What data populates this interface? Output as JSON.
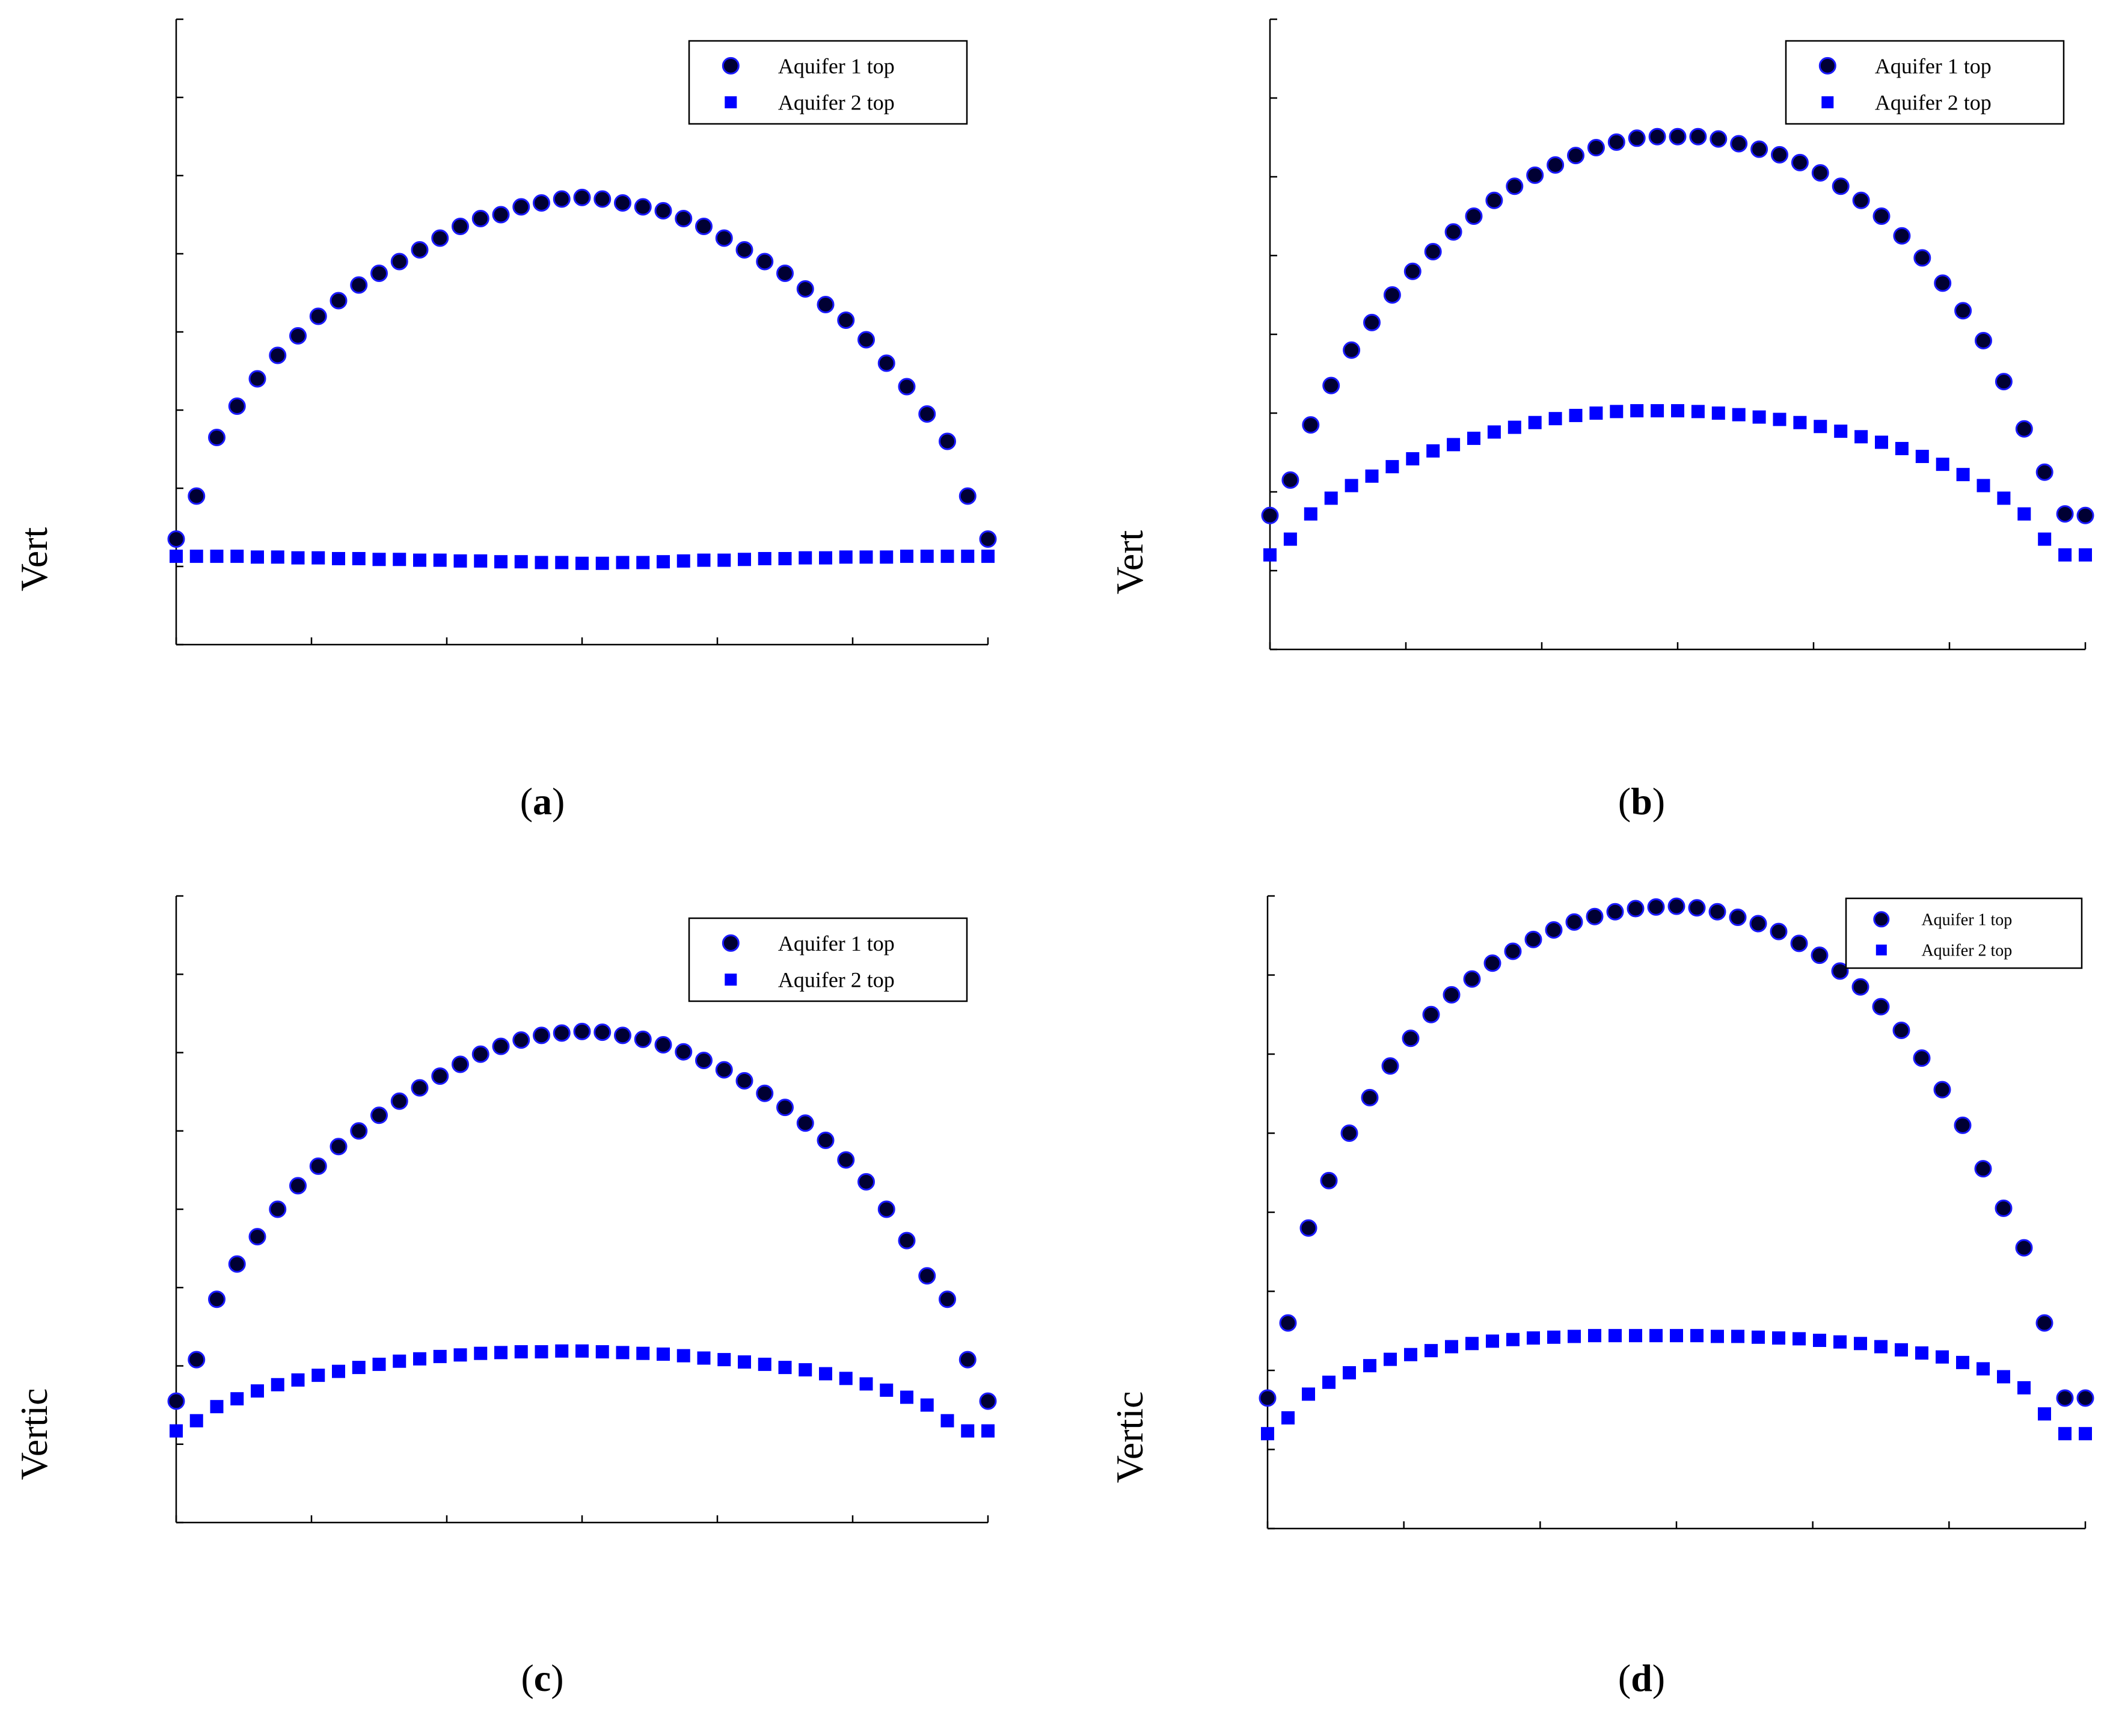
{
  "colors": {
    "aquifer1_fill": "#000033",
    "aquifer1_stroke": "#1a1aff",
    "aquifer2_fill": "#0000ff",
    "axis": "#000000"
  },
  "chart_data": [
    {
      "type": "scatter",
      "panel_label": "a",
      "ylabel": "Vert",
      "xlim": [
        0,
        6
      ],
      "ylim": [
        0,
        8
      ],
      "xticks": [
        0,
        1,
        2,
        3,
        4,
        5,
        6
      ],
      "yticks": [
        0,
        1,
        2,
        3,
        4,
        5,
        6,
        7,
        8
      ],
      "legend": "top-right",
      "series": [
        {
          "name": "Aquifer 1 top",
          "marker": "circle",
          "x": [
            0,
            0.15,
            0.3,
            0.45,
            0.6,
            0.75,
            0.9,
            1.05,
            1.2,
            1.35,
            1.5,
            1.65,
            1.8,
            1.95,
            2.1,
            2.25,
            2.4,
            2.55,
            2.7,
            2.85,
            3.0,
            3.15,
            3.3,
            3.45,
            3.6,
            3.75,
            3.9,
            4.05,
            4.2,
            4.35,
            4.5,
            4.65,
            4.8,
            4.95,
            5.1,
            5.25,
            5.4,
            5.55,
            5.7,
            5.85,
            6.0
          ],
          "values": [
            1.35,
            1.9,
            2.65,
            3.05,
            3.4,
            3.7,
            3.95,
            4.2,
            4.4,
            4.6,
            4.75,
            4.9,
            5.05,
            5.2,
            5.35,
            5.45,
            5.5,
            5.6,
            5.65,
            5.7,
            5.72,
            5.7,
            5.65,
            5.6,
            5.55,
            5.45,
            5.35,
            5.2,
            5.05,
            4.9,
            4.75,
            4.55,
            4.35,
            4.15,
            3.9,
            3.6,
            3.3,
            2.95,
            2.6,
            1.9,
            1.35
          ]
        },
        {
          "name": "Aquifer 2 top",
          "marker": "square",
          "x": [
            0,
            0.15,
            0.3,
            0.45,
            0.6,
            0.75,
            0.9,
            1.05,
            1.2,
            1.35,
            1.5,
            1.65,
            1.8,
            1.95,
            2.1,
            2.25,
            2.4,
            2.55,
            2.7,
            2.85,
            3.0,
            3.15,
            3.3,
            3.45,
            3.6,
            3.75,
            3.9,
            4.05,
            4.2,
            4.35,
            4.5,
            4.65,
            4.8,
            4.95,
            5.1,
            5.25,
            5.4,
            5.55,
            5.7,
            5.85,
            6.0
          ],
          "values": [
            1.13,
            1.13,
            1.13,
            1.13,
            1.12,
            1.12,
            1.11,
            1.11,
            1.1,
            1.1,
            1.09,
            1.09,
            1.08,
            1.08,
            1.07,
            1.07,
            1.06,
            1.06,
            1.05,
            1.05,
            1.04,
            1.04,
            1.05,
            1.05,
            1.06,
            1.07,
            1.08,
            1.08,
            1.09,
            1.1,
            1.1,
            1.11,
            1.11,
            1.12,
            1.12,
            1.12,
            1.13,
            1.13,
            1.13,
            1.13,
            1.13
          ]
        }
      ]
    },
    {
      "type": "scatter",
      "panel_label": "b",
      "ylabel": "Vert",
      "xlim": [
        0,
        6
      ],
      "ylim": [
        0,
        8
      ],
      "xticks": [
        0,
        1,
        2,
        3,
        4,
        5,
        6
      ],
      "yticks": [
        0,
        1,
        2,
        3,
        4,
        5,
        6,
        7,
        8
      ],
      "legend": "top-right",
      "series": [
        {
          "name": "Aquifer 1 top",
          "marker": "circle",
          "x": [
            0,
            0.15,
            0.3,
            0.45,
            0.6,
            0.75,
            0.9,
            1.05,
            1.2,
            1.35,
            1.5,
            1.65,
            1.8,
            1.95,
            2.1,
            2.25,
            2.4,
            2.55,
            2.7,
            2.85,
            3.0,
            3.15,
            3.3,
            3.45,
            3.6,
            3.75,
            3.9,
            4.05,
            4.2,
            4.35,
            4.5,
            4.65,
            4.8,
            4.95,
            5.1,
            5.25,
            5.4,
            5.55,
            5.7,
            5.85,
            6.0
          ],
          "values": [
            1.7,
            2.15,
            2.85,
            3.35,
            3.8,
            4.15,
            4.5,
            4.8,
            5.05,
            5.3,
            5.5,
            5.7,
            5.88,
            6.02,
            6.15,
            6.27,
            6.37,
            6.44,
            6.49,
            6.51,
            6.51,
            6.51,
            6.48,
            6.42,
            6.35,
            6.28,
            6.18,
            6.05,
            5.88,
            5.7,
            5.5,
            5.25,
            4.97,
            4.65,
            4.3,
            3.92,
            3.4,
            2.8,
            2.25,
            1.72,
            1.7
          ]
        },
        {
          "name": "Aquifer 2 top",
          "marker": "square",
          "x": [
            0,
            0.15,
            0.3,
            0.45,
            0.6,
            0.75,
            0.9,
            1.05,
            1.2,
            1.35,
            1.5,
            1.65,
            1.8,
            1.95,
            2.1,
            2.25,
            2.4,
            2.55,
            2.7,
            2.85,
            3.0,
            3.15,
            3.3,
            3.45,
            3.6,
            3.75,
            3.9,
            4.05,
            4.2,
            4.35,
            4.5,
            4.65,
            4.8,
            4.95,
            5.1,
            5.25,
            5.4,
            5.55,
            5.7,
            5.85,
            6.0
          ],
          "values": [
            1.2,
            1.4,
            1.72,
            1.92,
            2.08,
            2.2,
            2.32,
            2.42,
            2.52,
            2.6,
            2.68,
            2.76,
            2.82,
            2.88,
            2.93,
            2.97,
            3.0,
            3.02,
            3.03,
            3.03,
            3.03,
            3.02,
            3.0,
            2.98,
            2.95,
            2.92,
            2.88,
            2.83,
            2.77,
            2.7,
            2.63,
            2.55,
            2.45,
            2.35,
            2.22,
            2.08,
            1.92,
            1.72,
            1.4,
            1.2,
            1.2
          ]
        }
      ]
    },
    {
      "type": "scatter",
      "panel_label": "c",
      "ylabel": "Vertic",
      "xlim": [
        0,
        6
      ],
      "ylim": [
        0,
        8
      ],
      "xticks": [
        0,
        1,
        2,
        3,
        4,
        5,
        6
      ],
      "yticks": [
        0,
        1,
        2,
        3,
        4,
        5,
        6,
        7,
        8
      ],
      "legend": "top-right",
      "series": [
        {
          "name": "Aquifer 1 top",
          "marker": "circle",
          "x": [
            0,
            0.15,
            0.3,
            0.45,
            0.6,
            0.75,
            0.9,
            1.05,
            1.2,
            1.35,
            1.5,
            1.65,
            1.8,
            1.95,
            2.1,
            2.25,
            2.4,
            2.55,
            2.7,
            2.85,
            3.0,
            3.15,
            3.3,
            3.45,
            3.6,
            3.75,
            3.9,
            4.05,
            4.2,
            4.35,
            4.5,
            4.65,
            4.8,
            4.95,
            5.1,
            5.25,
            5.4,
            5.55,
            5.7,
            5.85,
            6.0
          ],
          "values": [
            1.55,
            2.08,
            2.85,
            3.3,
            3.65,
            4.0,
            4.3,
            4.55,
            4.8,
            5.0,
            5.2,
            5.38,
            5.55,
            5.7,
            5.85,
            5.98,
            6.08,
            6.16,
            6.22,
            6.25,
            6.27,
            6.26,
            6.22,
            6.17,
            6.1,
            6.01,
            5.9,
            5.78,
            5.64,
            5.48,
            5.3,
            5.1,
            4.88,
            4.63,
            4.35,
            4.0,
            3.6,
            3.15,
            2.85,
            2.08,
            1.55
          ]
        },
        {
          "name": "Aquifer 2 top",
          "marker": "square",
          "x": [
            0,
            0.15,
            0.3,
            0.45,
            0.6,
            0.75,
            0.9,
            1.05,
            1.2,
            1.35,
            1.5,
            1.65,
            1.8,
            1.95,
            2.1,
            2.25,
            2.4,
            2.55,
            2.7,
            2.85,
            3.0,
            3.15,
            3.3,
            3.45,
            3.6,
            3.75,
            3.9,
            4.05,
            4.2,
            4.35,
            4.5,
            4.65,
            4.8,
            4.95,
            5.1,
            5.25,
            5.4,
            5.55,
            5.7,
            5.85,
            6.0
          ],
          "values": [
            1.17,
            1.3,
            1.48,
            1.58,
            1.68,
            1.76,
            1.82,
            1.88,
            1.93,
            1.98,
            2.02,
            2.06,
            2.09,
            2.12,
            2.14,
            2.16,
            2.17,
            2.18,
            2.18,
            2.19,
            2.19,
            2.18,
            2.17,
            2.16,
            2.15,
            2.13,
            2.1,
            2.08,
            2.05,
            2.02,
            1.98,
            1.95,
            1.9,
            1.84,
            1.77,
            1.69,
            1.6,
            1.5,
            1.3,
            1.17,
            1.17
          ]
        }
      ]
    },
    {
      "type": "scatter",
      "panel_label": "d",
      "ylabel": "Vertic",
      "xlim": [
        0,
        6
      ],
      "ylim": [
        0,
        8
      ],
      "xticks": [
        0,
        1,
        2,
        3,
        4,
        5,
        6
      ],
      "yticks": [
        0,
        1,
        2,
        3,
        4,
        5,
        6,
        7,
        8
      ],
      "legend": "top-right",
      "series": [
        {
          "name": "Aquifer 1 top",
          "marker": "circle",
          "x": [
            0,
            0.15,
            0.3,
            0.45,
            0.6,
            0.75,
            0.9,
            1.05,
            1.2,
            1.35,
            1.5,
            1.65,
            1.8,
            1.95,
            2.1,
            2.25,
            2.4,
            2.55,
            2.7,
            2.85,
            3.0,
            3.15,
            3.3,
            3.45,
            3.6,
            3.75,
            3.9,
            4.05,
            4.2,
            4.35,
            4.5,
            4.65,
            4.8,
            4.95,
            5.1,
            5.25,
            5.4,
            5.55,
            5.7,
            5.85,
            6.0
          ],
          "values": [
            1.65,
            2.6,
            3.8,
            4.4,
            5.0,
            5.45,
            5.85,
            6.2,
            6.5,
            6.75,
            6.95,
            7.15,
            7.3,
            7.45,
            7.57,
            7.67,
            7.74,
            7.8,
            7.84,
            7.86,
            7.87,
            7.85,
            7.8,
            7.73,
            7.65,
            7.55,
            7.4,
            7.25,
            7.05,
            6.85,
            6.6,
            6.3,
            5.95,
            5.55,
            5.1,
            4.55,
            4.05,
            3.55,
            2.6,
            1.65,
            1.65
          ]
        },
        {
          "name": "Aquifer 2 top",
          "marker": "square",
          "x": [
            0,
            0.15,
            0.3,
            0.45,
            0.6,
            0.75,
            0.9,
            1.05,
            1.2,
            1.35,
            1.5,
            1.65,
            1.8,
            1.95,
            2.1,
            2.25,
            2.4,
            2.55,
            2.7,
            2.85,
            3.0,
            3.15,
            3.3,
            3.45,
            3.6,
            3.75,
            3.9,
            4.05,
            4.2,
            4.35,
            4.5,
            4.65,
            4.8,
            4.95,
            5.1,
            5.25,
            5.4,
            5.55,
            5.7,
            5.85,
            6.0
          ],
          "values": [
            1.2,
            1.4,
            1.7,
            1.85,
            1.97,
            2.06,
            2.14,
            2.2,
            2.25,
            2.3,
            2.34,
            2.37,
            2.39,
            2.41,
            2.42,
            2.43,
            2.44,
            2.44,
            2.44,
            2.44,
            2.44,
            2.44,
            2.43,
            2.43,
            2.42,
            2.41,
            2.4,
            2.38,
            2.36,
            2.34,
            2.3,
            2.26,
            2.22,
            2.17,
            2.1,
            2.02,
            1.92,
            1.78,
            1.45,
            1.2,
            1.2
          ]
        }
      ]
    }
  ]
}
